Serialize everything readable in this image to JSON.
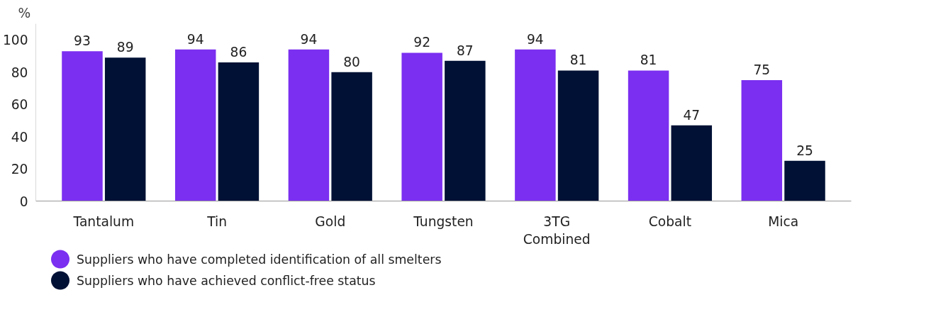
{
  "chart_data": {
    "type": "bar",
    "ylabel": "%",
    "categories": [
      "Tantalum",
      "Tin",
      "Gold",
      "Tungsten",
      "3TG Combined",
      "Cobalt",
      "Mica"
    ],
    "series": [
      {
        "name": "Suppliers who have completed identification of all smelters",
        "color": "#7b2ff0",
        "values": [
          93,
          94,
          94,
          92,
          94,
          81,
          75
        ]
      },
      {
        "name": "Suppliers who have achieved conflict-free status",
        "color": "#001135",
        "values": [
          89,
          86,
          80,
          87,
          81,
          47,
          25
        ]
      }
    ],
    "ylim": [
      0,
      110
    ],
    "yticks": [
      0,
      20,
      40,
      60,
      80,
      100
    ],
    "grid": false,
    "data_labels": true,
    "legend": "bottom"
  }
}
